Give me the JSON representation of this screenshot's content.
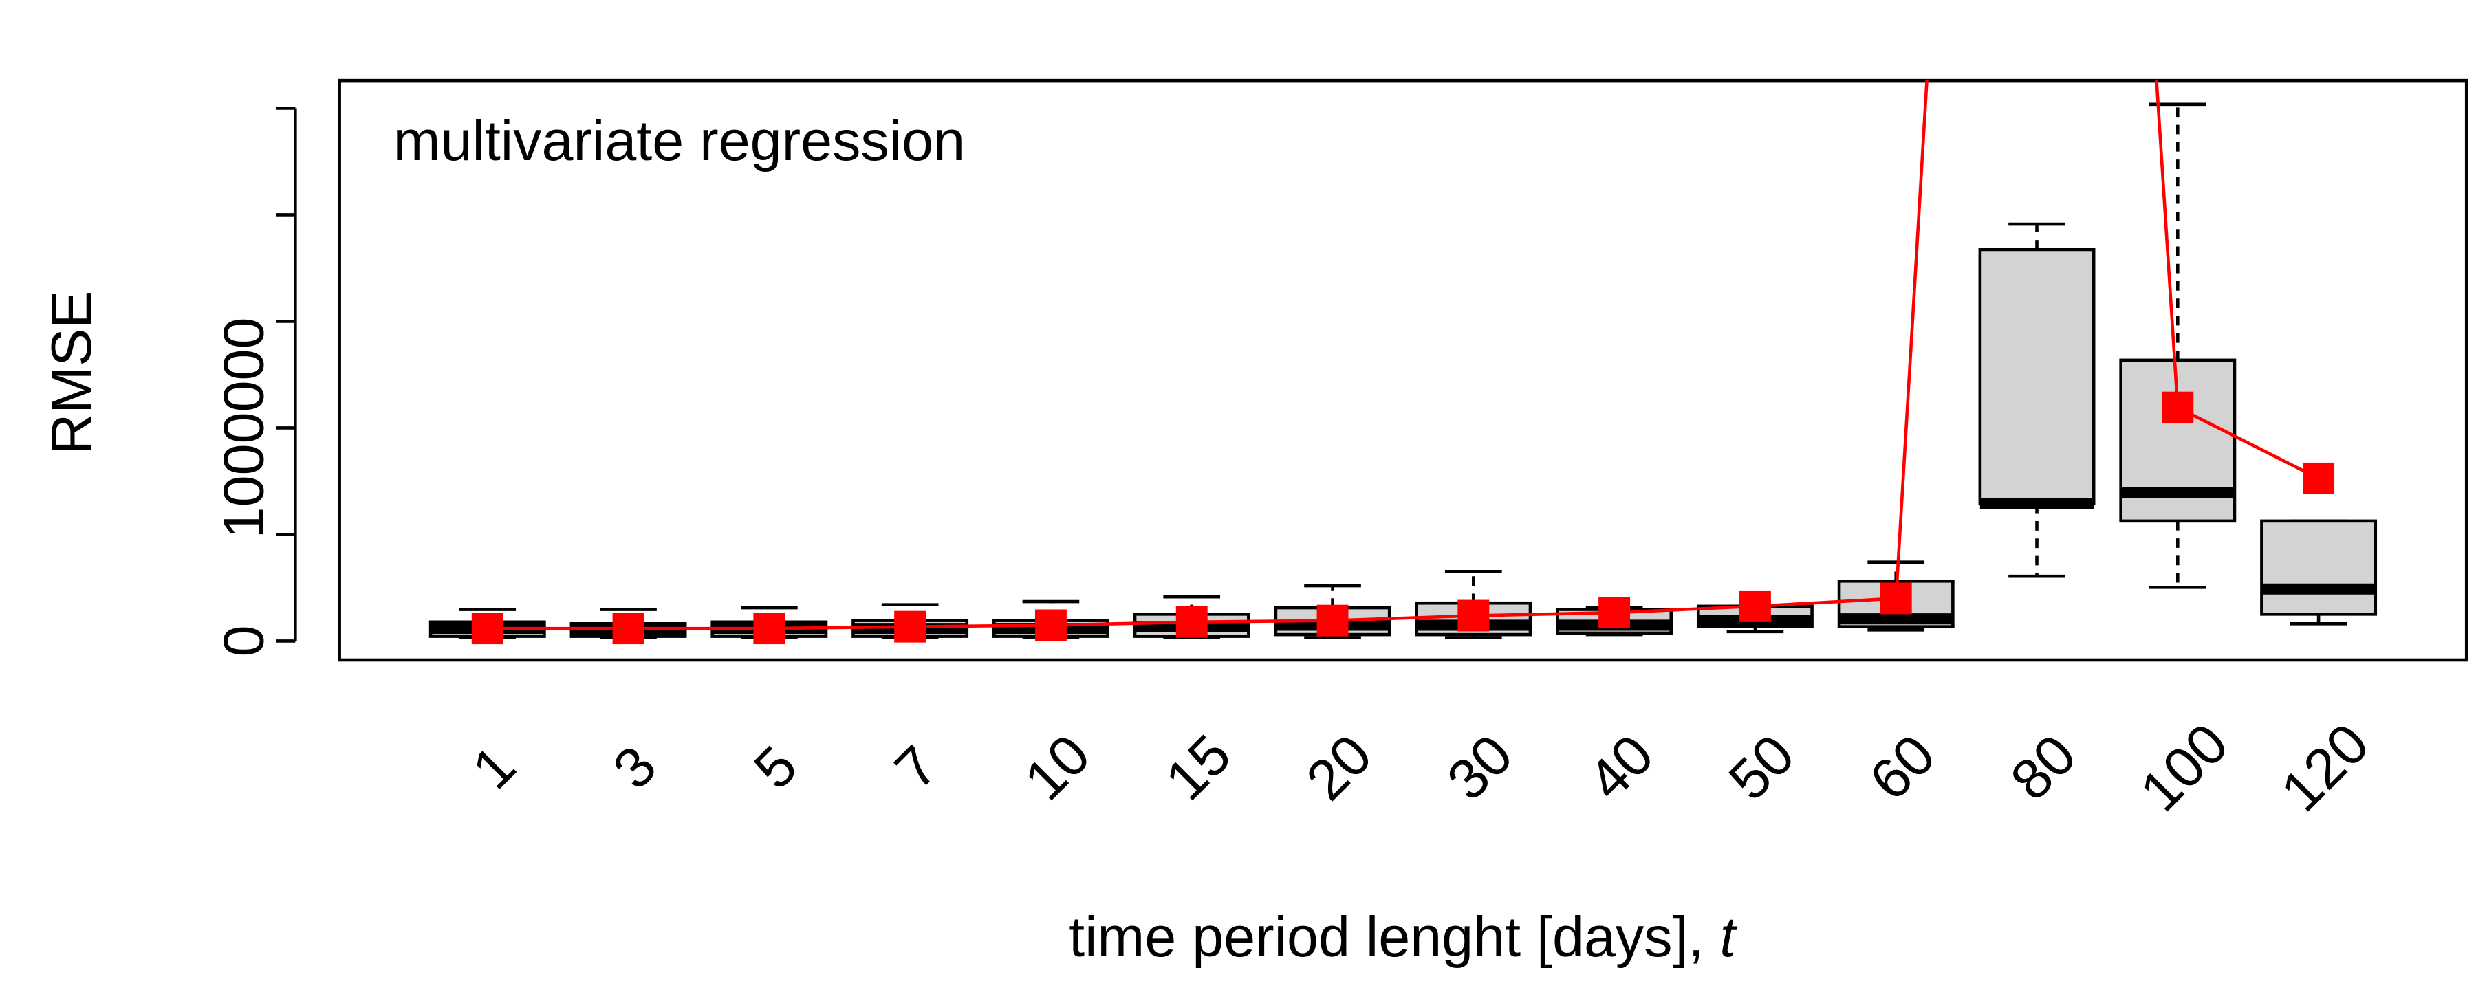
{
  "chart_data": {
    "type": "boxplot",
    "title": "multivariate regression",
    "y_label": "RMSE",
    "x_label": "time period lenght [days],",
    "x_label_italic": "t",
    "categories": [
      "1",
      "3",
      "5",
      "7",
      "10",
      "15",
      "20",
      "30",
      "40",
      "50",
      "60",
      "80",
      "100",
      "120"
    ],
    "min": [
      15000,
      15000,
      15000,
      15000,
      15000,
      15000,
      15000,
      15000,
      30000,
      44000,
      52000,
      304000,
      252000,
      81000
    ],
    "q1": [
      22000,
      22000,
      22000,
      22000,
      22000,
      22000,
      30000,
      30000,
      37000,
      67000,
      67000,
      644000,
      563000,
      126000
    ],
    "median": [
      59000,
      52000,
      59000,
      59000,
      59000,
      67000,
      74000,
      74000,
      74000,
      96000,
      104000,
      644000,
      696000,
      244000
    ],
    "q3": [
      89000,
      81000,
      89000,
      96000,
      96000,
      126000,
      156000,
      178000,
      148000,
      163000,
      281000,
      1837000,
      1318000,
      563000
    ],
    "max": [
      148000,
      148000,
      156000,
      170000,
      185000,
      207000,
      259000,
      326000,
      156000,
      163000,
      370000,
      1956000,
      2518000,
      563000
    ],
    "means": [
      59000,
      59000,
      59000,
      67000,
      74000,
      89000,
      96000,
      119000,
      133000,
      163000,
      200000,
      11300000,
      1096000,
      763000
    ],
    "box_color": "#d3d3d3",
    "mean_color": "#ff0000",
    "ylim": [
      -89000,
      2630000
    ],
    "yticks": [
      0,
      1000000
    ],
    "yminor_ticks": [
      500000,
      1500000,
      2000000,
      2500000
    ]
  }
}
